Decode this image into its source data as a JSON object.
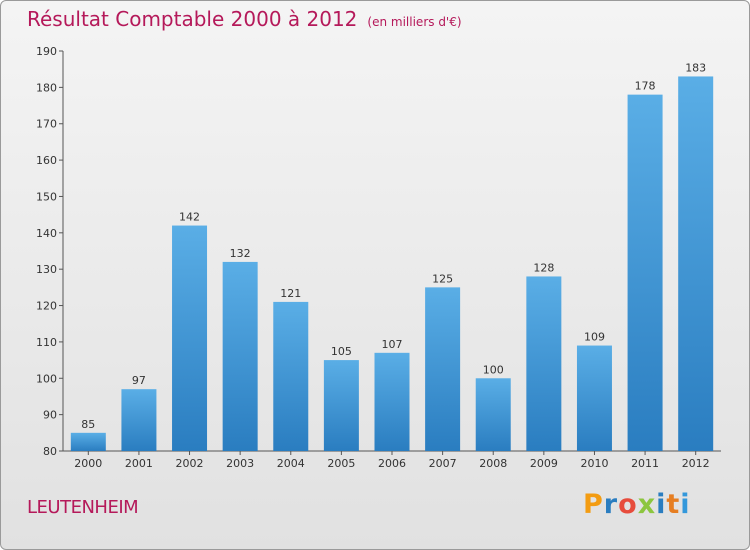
{
  "header": {
    "title": "Résultat Comptable 2000 à 2012",
    "subtitle": "(en milliers d'€)"
  },
  "footer": {
    "city": "LEUTENHEIM",
    "logo": "Proxiti"
  },
  "colors": {
    "title": "#b5195a",
    "bar_top": "#5aaee6",
    "bar_bottom": "#2a7dc0",
    "logo_letters": [
      "#f39c12",
      "#2a7dc0",
      "#e74c3c",
      "#8cc63f",
      "#2a7dc0",
      "#e67e22",
      "#3498db"
    ]
  },
  "chart_data": {
    "type": "bar",
    "categories": [
      "2000",
      "2001",
      "2002",
      "2003",
      "2004",
      "2005",
      "2006",
      "2007",
      "2008",
      "2009",
      "2010",
      "2011",
      "2012"
    ],
    "values": [
      85,
      97,
      142,
      132,
      121,
      105,
      107,
      125,
      100,
      128,
      109,
      178,
      183
    ],
    "title": "Résultat Comptable 2000 à 2012",
    "subtitle": "(en milliers d'€)",
    "ylim": [
      80,
      190
    ],
    "yticks": [
      80,
      90,
      100,
      110,
      120,
      130,
      140,
      150,
      160,
      170,
      180,
      190
    ],
    "grid": false,
    "data_labels": true
  }
}
